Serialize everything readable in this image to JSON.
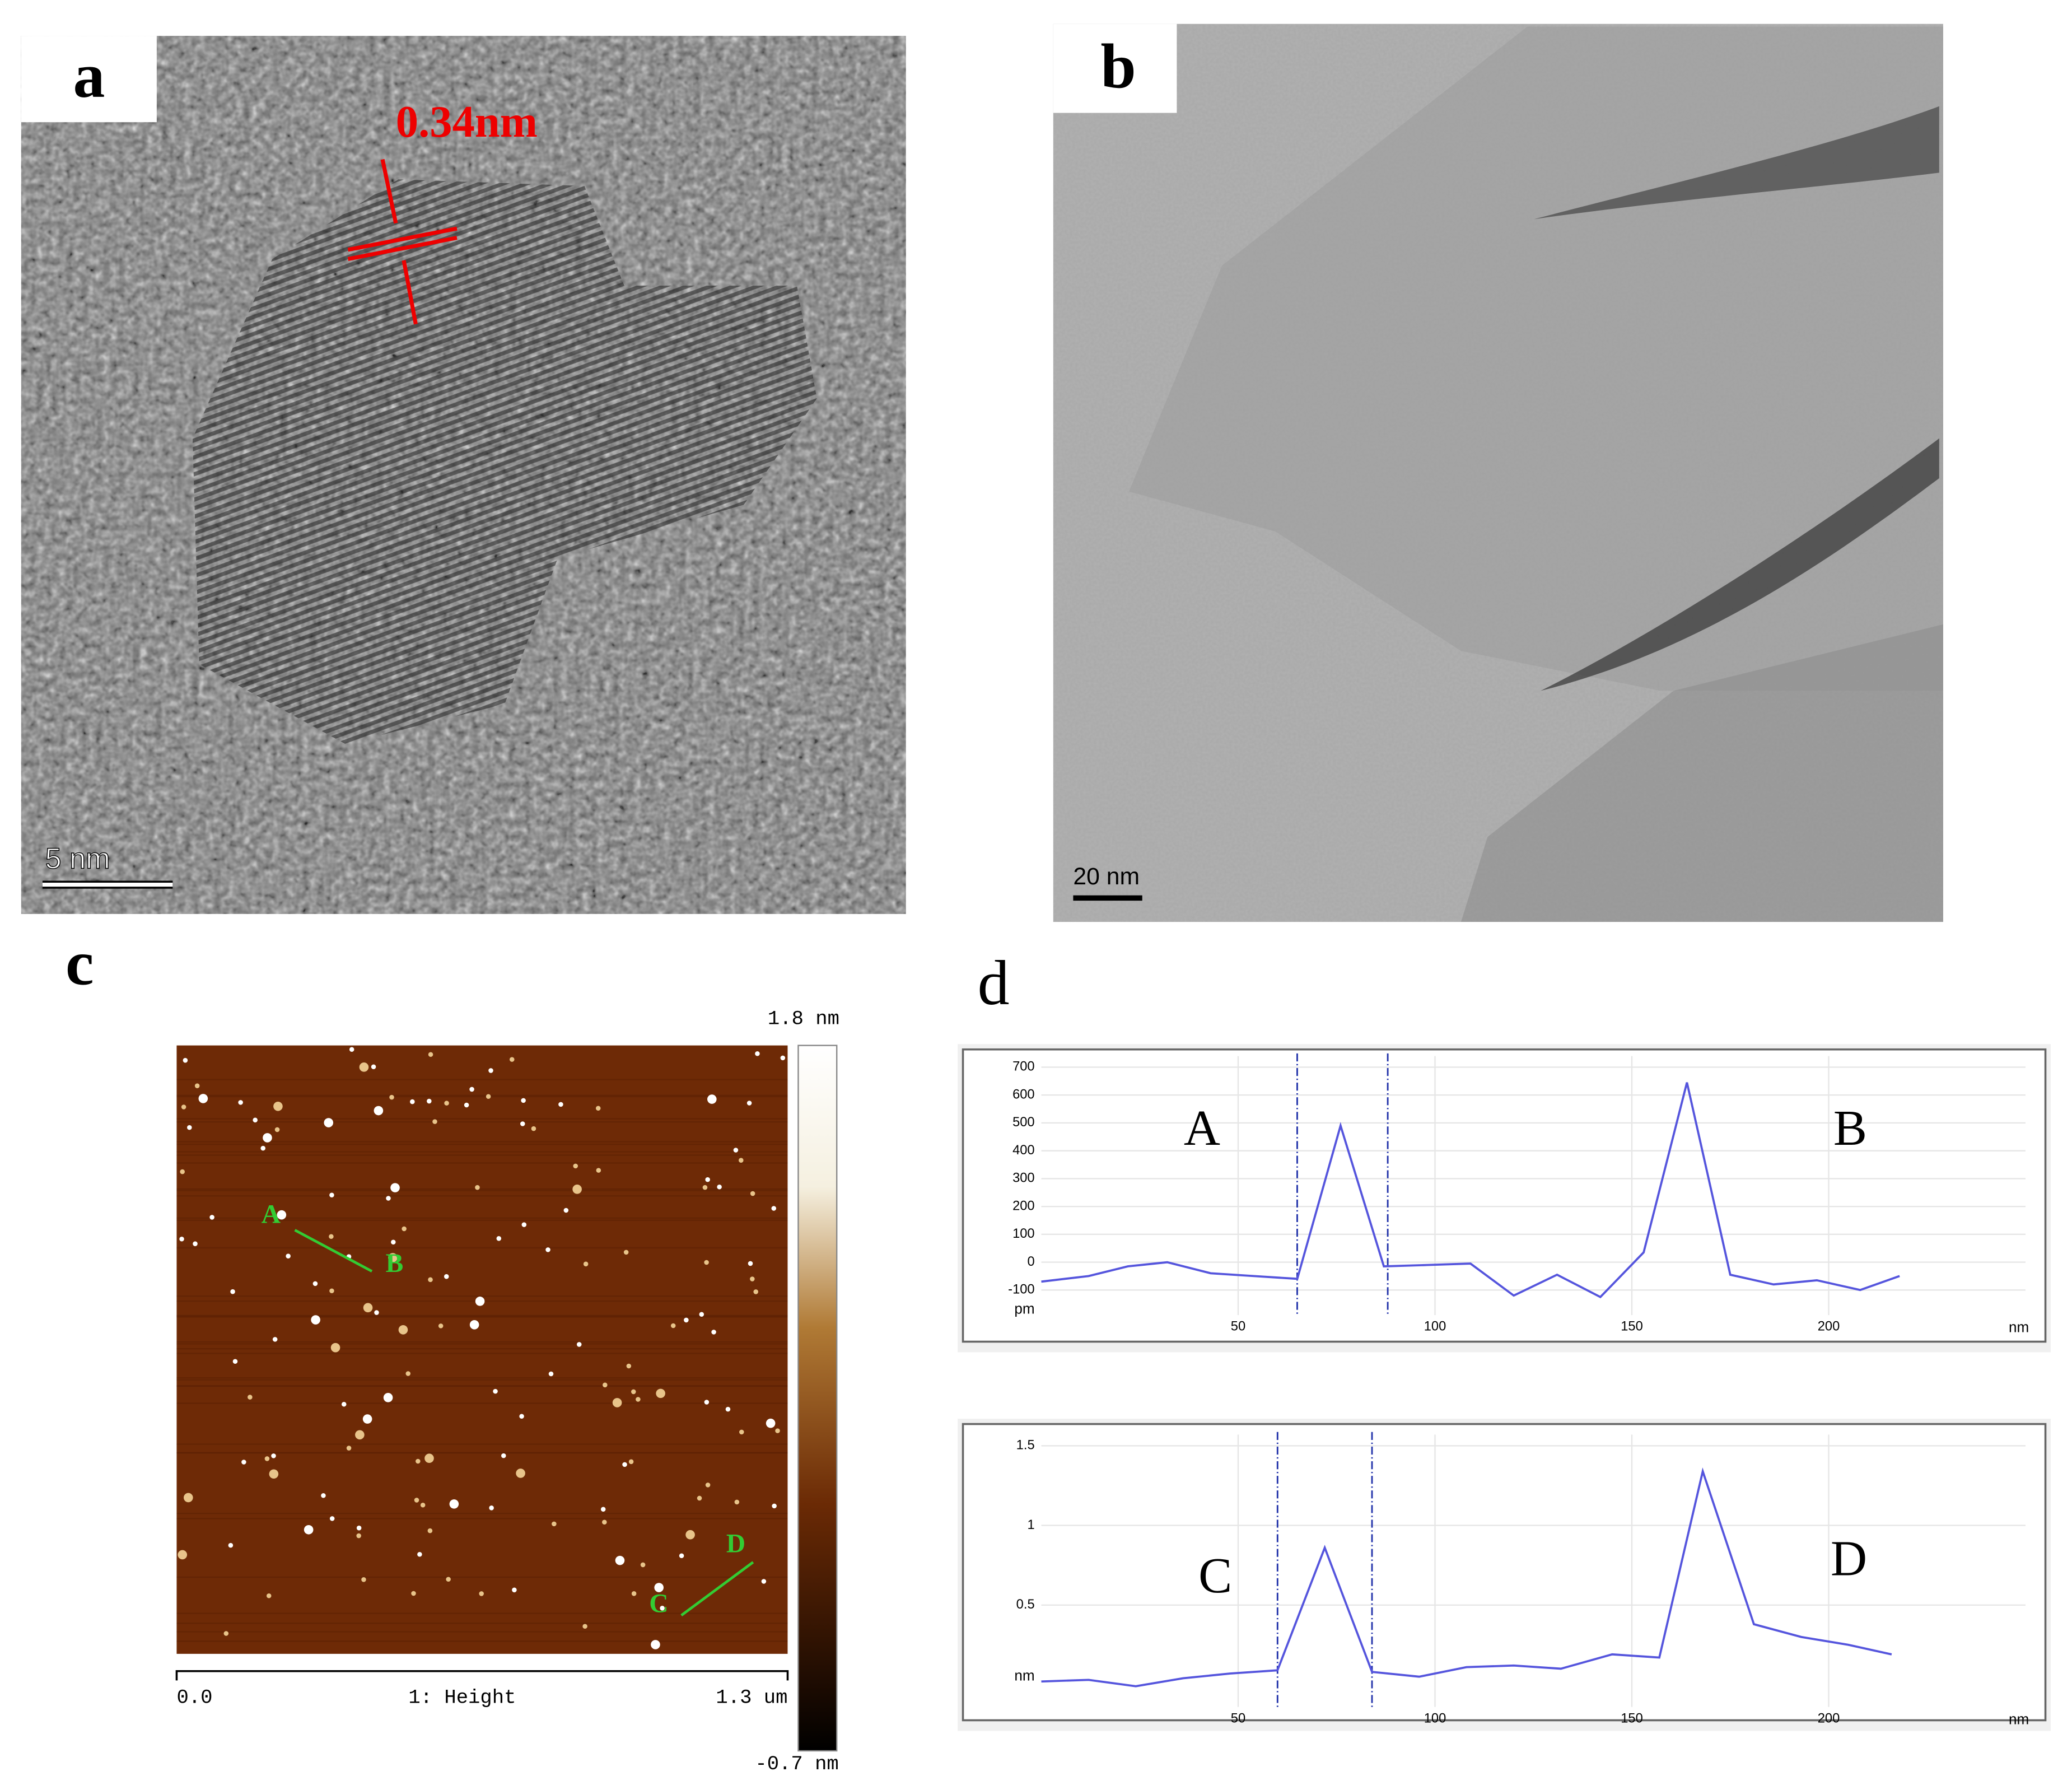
{
  "panels": {
    "a": {
      "label": "a",
      "spacing": "0.34nm",
      "scale": "5 nm"
    },
    "b": {
      "label": "b",
      "scale": "20 nm"
    },
    "c": {
      "label": "c",
      "bar_max": "1.8 nm",
      "bar_min": "-0.7 nm",
      "x_start": "0.0",
      "channel": "1: Height",
      "x_end": "1.3 um",
      "points": [
        "A",
        "B",
        "C",
        "D"
      ]
    },
    "d": {
      "label": "d"
    }
  },
  "chart_data": [
    {
      "type": "line",
      "x_unit": "nm",
      "y_unit": "pm",
      "color": "#5555dd",
      "xlim": [
        0,
        250
      ],
      "xticks": [
        50,
        100,
        150,
        200
      ],
      "ylim": [
        -190,
        740
      ],
      "yticks": [
        -100,
        0,
        100,
        200,
        300,
        400,
        500,
        600,
        700
      ],
      "markers": [
        65,
        88
      ],
      "annotations": [
        "A",
        "B"
      ],
      "x": [
        0,
        12,
        22,
        32,
        43,
        54,
        65,
        76,
        87,
        98,
        109,
        120,
        131,
        142,
        153,
        164,
        175,
        186,
        197,
        208,
        218
      ],
      "values": [
        -70,
        -50,
        -15,
        0,
        -40,
        -50,
        -60,
        490,
        -15,
        -10,
        -5,
        -120,
        -45,
        -125,
        35,
        645,
        -45,
        -80,
        -65,
        -100,
        -50
      ]
    },
    {
      "type": "line",
      "x_unit": "nm",
      "y_unit": "nm",
      "color": "#5555dd",
      "xlim": [
        0,
        250
      ],
      "xticks": [
        50,
        100,
        150,
        200
      ],
      "ylim": [
        -0.14,
        1.57
      ],
      "yticks": [
        0.5,
        1,
        1.5
      ],
      "markers": [
        60,
        84
      ],
      "annotations": [
        "C",
        "D"
      ],
      "x": [
        0,
        12,
        24,
        36,
        48,
        60,
        72,
        84,
        96,
        108,
        120,
        132,
        145,
        157,
        168,
        181,
        193,
        205,
        216
      ],
      "values": [
        0.02,
        0.03,
        -0.01,
        0.04,
        0.07,
        0.09,
        0.86,
        0.08,
        0.05,
        0.11,
        0.12,
        0.1,
        0.19,
        0.17,
        1.34,
        0.38,
        0.3,
        0.25,
        0.19
      ]
    }
  ]
}
